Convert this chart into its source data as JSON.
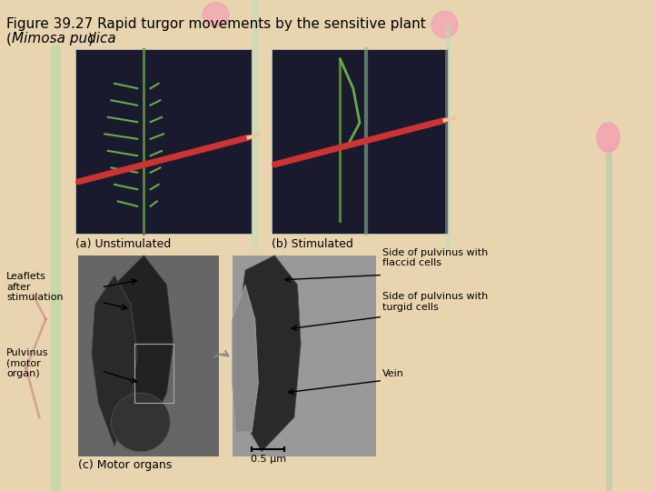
{
  "title_line1": "Figure 39.27 Rapid turgor movements by the sensitive plant",
  "bg_color": "#e8d5b0",
  "label_a": "(a) Unstimulated",
  "label_b": "(b) Stimulated",
  "label_c": "(c) Motor organs",
  "scale_bar": "0.5 μm",
  "annotations": {
    "leaflets": "Leaflets\nafter\nstimulation",
    "pulvinus": "Pulvinus\n(motor\norgan)",
    "side_flaccid": "Side of pulvinus with\nflaccid cells",
    "side_turgid": "Side of pulvinus with\nturgid cells",
    "vein": "Vein"
  }
}
